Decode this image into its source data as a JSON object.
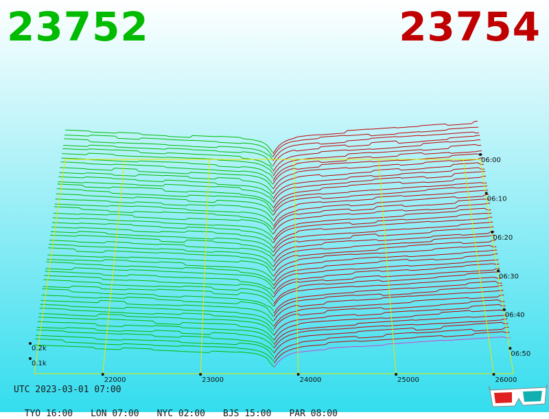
{
  "header": {
    "bid_price": "23752",
    "ask_price": "23754"
  },
  "colors": {
    "bid": "#00bb00",
    "ask": "#c00000",
    "grid": "#e8e800",
    "background_top": "#ffffff",
    "background_bottom": "#33ddee"
  },
  "chart_data": {
    "type": "depth-chart-3d",
    "title": "",
    "x_ticks": [
      "22000",
      "23000",
      "24000",
      "25000",
      "26000"
    ],
    "x_range": [
      21300,
      26200
    ],
    "mid_price": 23753,
    "z_labels": [
      "0.1k",
      "0.2k"
    ],
    "time_labels": [
      "06:00",
      "06:10",
      "06:20",
      "06:30",
      "06:40",
      "06:50"
    ],
    "snapshot_count": 48,
    "grid": true
  },
  "footer": {
    "utc": "UTC 2023-03-01 07:00",
    "zones": [
      "TYO 16:00",
      "LON 07:00",
      "NYC 02:00",
      "BJS 15:00",
      "PAR 08:00"
    ]
  },
  "icons": {
    "glasses": "3d-glasses-icon"
  }
}
